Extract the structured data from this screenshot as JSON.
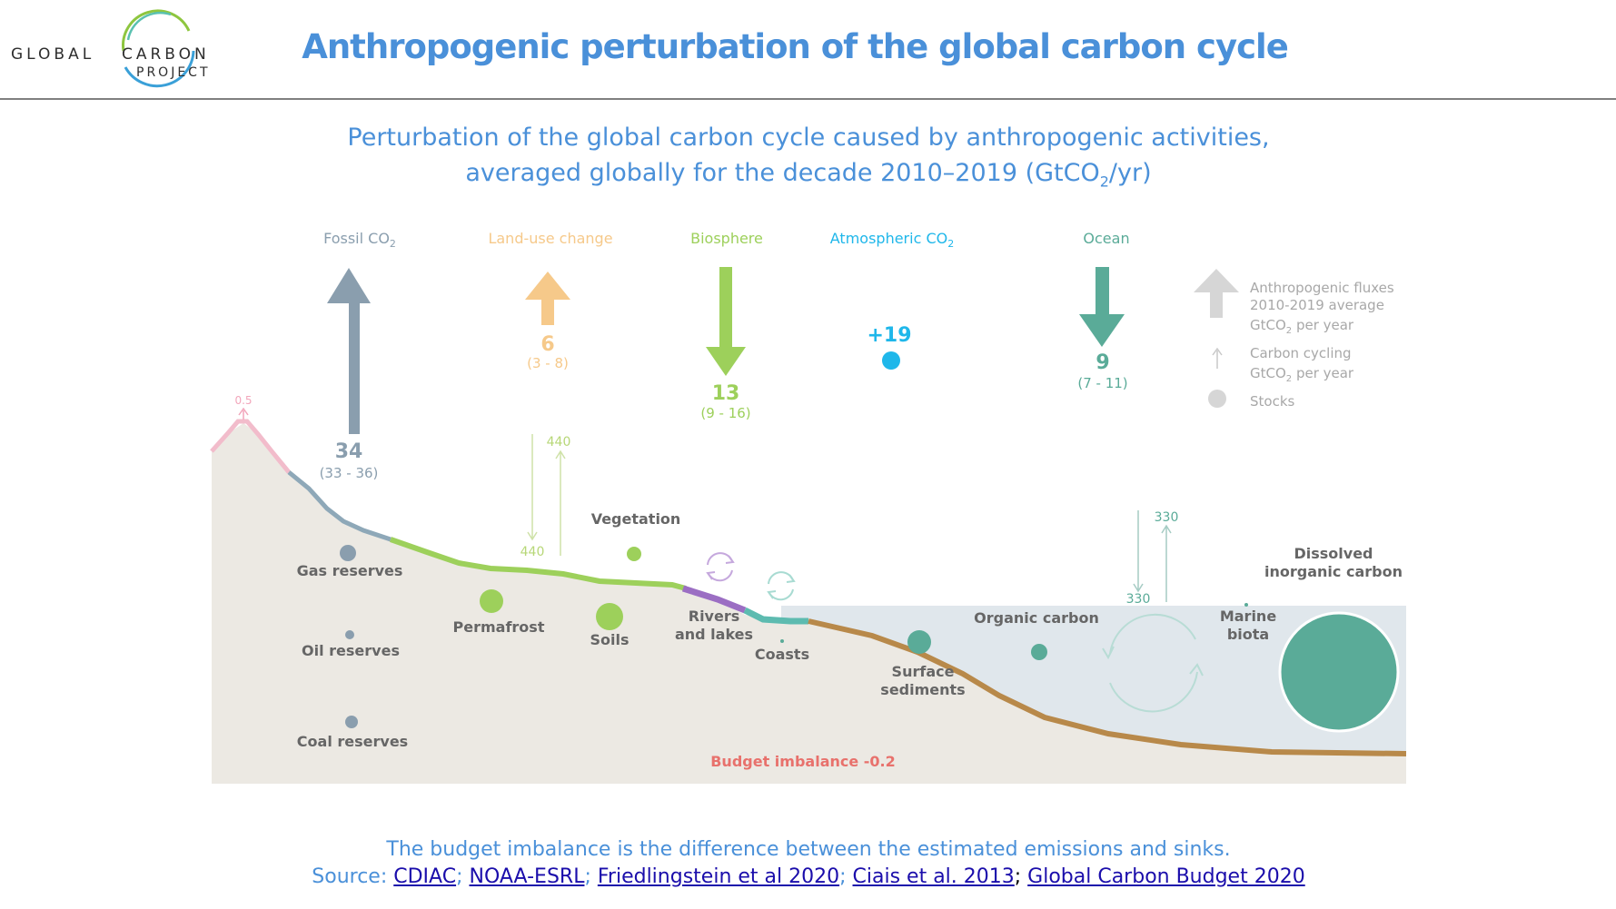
{
  "logo": {
    "word1": "GLOBAL",
    "word2": "CARBON",
    "word3": "PROJECT"
  },
  "title": "Anthropogenic perturbation of the global carbon cycle",
  "subtitle": {
    "line1": "Perturbation of the global carbon cycle caused by anthropogenic activities,",
    "line2_pre": "averaged globally for the decade 2010–2019 (GtCO",
    "line2_sub": "2",
    "line2_post": "/yr)"
  },
  "headers": {
    "fossil": "Fossil CO",
    "fossil_sub": "2",
    "landuse": "Land-use change",
    "biosphere": "Biosphere",
    "atmos": "Atmospheric CO",
    "atmos_sub": "2",
    "ocean": "Ocean"
  },
  "fluxes": {
    "fossil": {
      "value": "34",
      "range": "(33 - 36)"
    },
    "landuse": {
      "value": "6",
      "range": "(3 - 8)"
    },
    "biosphere": {
      "value": "13",
      "range": "(9 - 16)"
    },
    "atmos": {
      "value": "+19"
    },
    "ocean": {
      "value": "9",
      "range": "(7 - 11)"
    },
    "volcano": "0.5"
  },
  "cycling": {
    "land_down": "440",
    "land_up": "440",
    "ocean_up": "330",
    "ocean_down": "330"
  },
  "legend": {
    "fluxes_line1": "Anthropogenic fluxes",
    "fluxes_line2": "2010-2019 average",
    "fluxes_line3_pre": "GtCO",
    "fluxes_line3_sub": "2",
    "fluxes_line3_post": " per year",
    "cycling_line1": "Carbon cycling",
    "cycling_line2_pre": "GtCO",
    "cycling_line2_sub": "2",
    "cycling_line2_post": " per year",
    "stocks": "Stocks"
  },
  "stocks": {
    "gas": "Gas reserves",
    "oil": "Oil reserves",
    "coal": "Coal reserves",
    "permafrost": "Permafrost",
    "vegetation": "Vegetation",
    "soils": "Soils",
    "rivers_line1": "Rivers",
    "rivers_line2": "and lakes",
    "coasts": "Coasts",
    "sediments_line1": "Surface",
    "sediments_line2": "sediments",
    "organic": "Organic carbon",
    "marine_line1": "Marine",
    "marine_line2": "biota",
    "dic_line1": "Dissolved",
    "dic_line2": "inorganic carbon"
  },
  "imbalance": "Budget imbalance -0.2",
  "footer": {
    "note": "The budget imbalance is the difference between the estimated emissions and sinks.",
    "source_label": "Source: ",
    "links": [
      "CDIAC",
      "NOAA-ESRL",
      "Friedlingstein et al 2020",
      "Ciais et al. 2013",
      "Global Carbon Budget 2020"
    ]
  },
  "colors": {
    "title_blue": "#4a90d9",
    "fossil": "#8a9eae",
    "landuse": "#f6c98a",
    "biosphere": "#9dd05b",
    "atmos": "#1fb7ea",
    "ocean": "#5aab98",
    "legend_gray": "#a8a8a8",
    "land_fill": "#ece9e3",
    "water_fill": "#e0e7ec",
    "imbalance": "#e8716c",
    "river": "#9b6ec3",
    "sediment": "#b8894a"
  }
}
